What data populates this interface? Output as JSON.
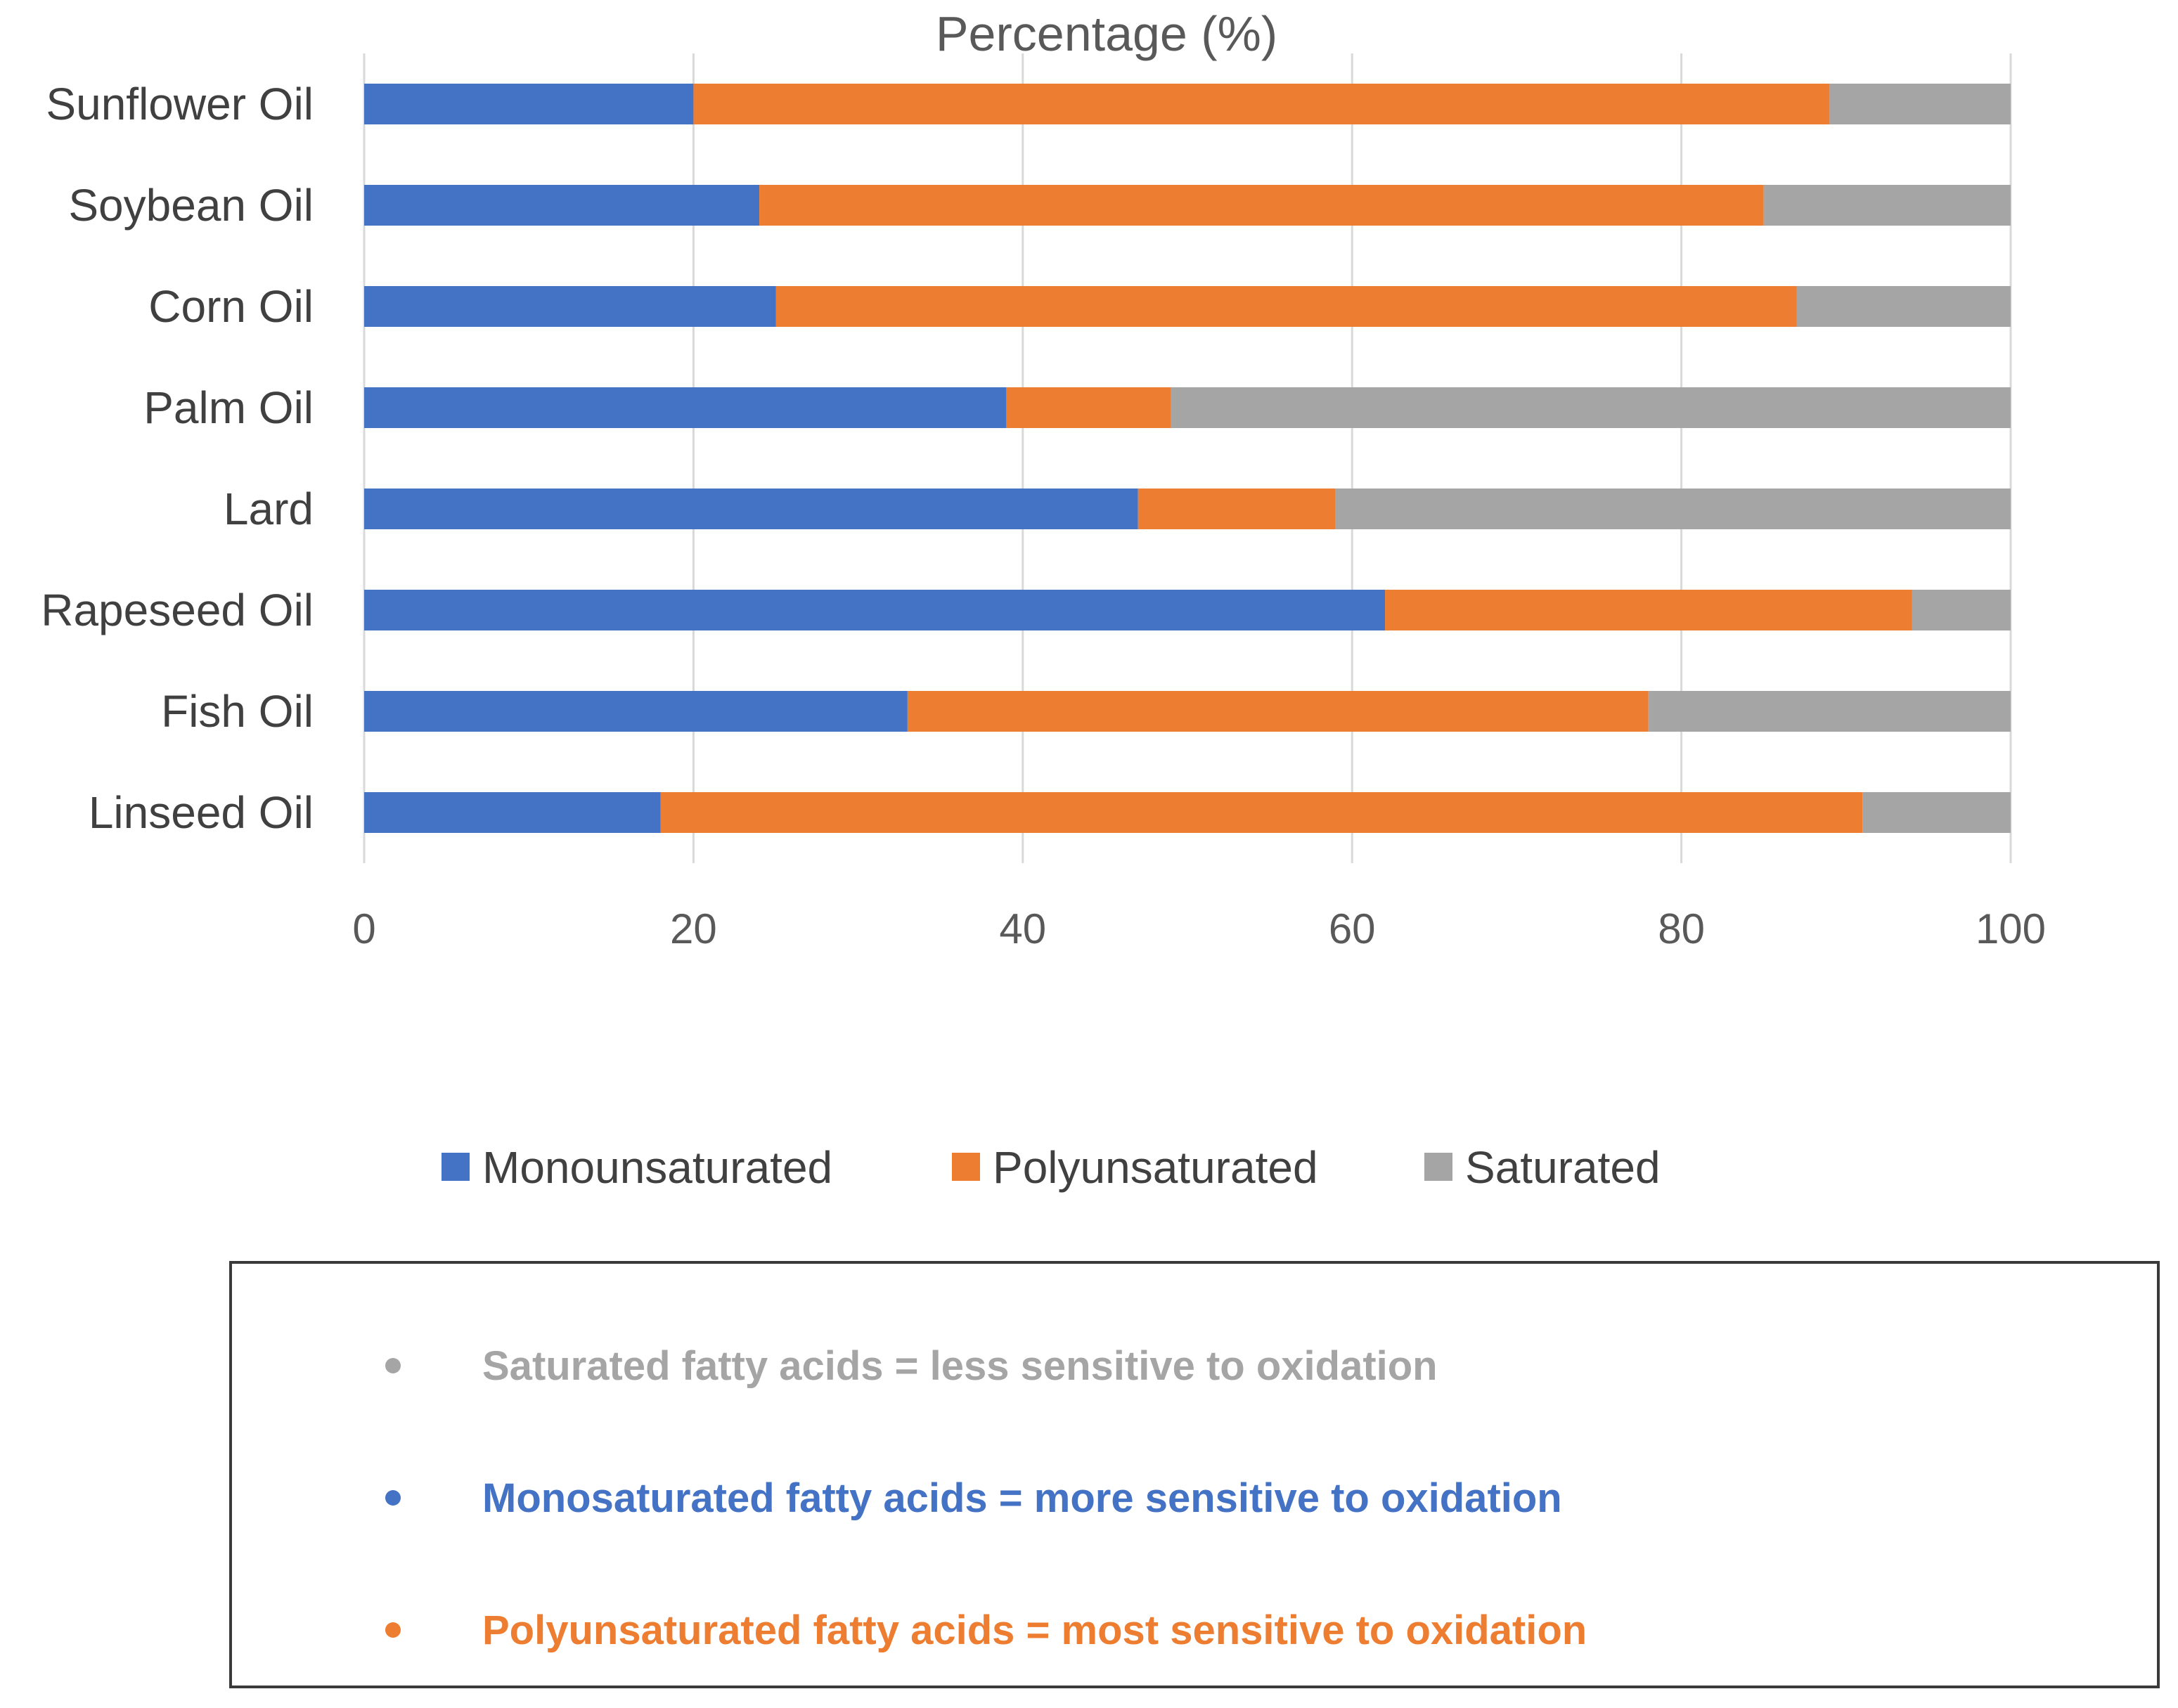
{
  "chart_data": {
    "type": "bar",
    "orientation": "horizontal",
    "stacked": true,
    "title": "Percentage (%)",
    "xlabel": "Percentage (%)",
    "ylabel": "",
    "xlim": [
      0,
      100
    ],
    "x_ticks": [
      0,
      20,
      40,
      60,
      80,
      100
    ],
    "grid": true,
    "legend_position": "bottom",
    "categories": [
      "Sunflower Oil",
      "Soybean Oil",
      "Corn Oil",
      "Palm Oil",
      "Lard",
      "Rapeseed Oil",
      "Fish Oil",
      "Linseed Oil"
    ],
    "series": [
      {
        "name": "Monounsaturated",
        "color": "#4472C4",
        "values": [
          20,
          24,
          25,
          39,
          47,
          62,
          33,
          18
        ]
      },
      {
        "name": "Polyunsaturated",
        "color": "#ED7D31",
        "values": [
          69,
          61,
          62,
          10,
          12,
          32,
          45,
          73
        ]
      },
      {
        "name": "Saturated",
        "color": "#A5A5A5",
        "values": [
          11,
          15,
          13,
          51,
          41,
          6,
          22,
          9
        ]
      }
    ]
  },
  "notes": [
    {
      "text": "Saturated fatty acids = less sensitive to oxidation",
      "color": "#A5A5A5"
    },
    {
      "text": "Monosaturated fatty acids = more sensitive to oxidation",
      "color": "#4472C4"
    },
    {
      "text": "Polyunsaturated fatty acids = most sensitive to oxidation",
      "color": "#ED7D31"
    }
  ]
}
